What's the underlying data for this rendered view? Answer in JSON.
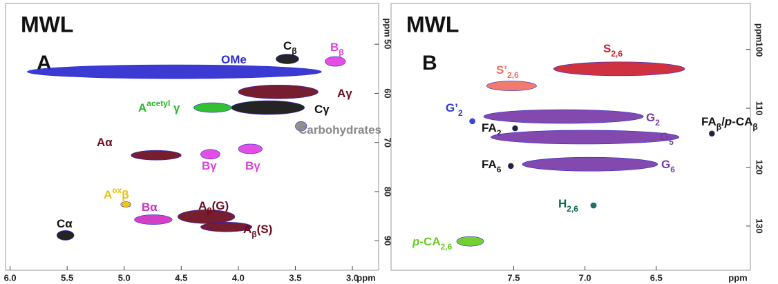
{
  "chart_data": [
    {
      "type": "hsqc",
      "title": "MWL",
      "panel": "A",
      "x_label": "ppm",
      "y_label": "ppm",
      "xlim": [
        6.04,
        2.77
      ],
      "ylim": [
        41.7,
        96
      ],
      "xticks": [
        {
          "value": 6,
          "label": "6.0"
        },
        5.5,
        {
          "value": 5,
          "label": "5.0"
        },
        4.5,
        {
          "value": 4,
          "label": "4.0"
        },
        3.5,
        {
          "value": 3,
          "label": "3.0"
        }
      ],
      "yticks": [
        50,
        60,
        70,
        80,
        90
      ],
      "peaks": [
        {
          "label": [
            {
              "text": "OMe"
            }
          ],
          "color": "#2a2ad0",
          "x": [
            5.85,
            3.27
          ],
          "y": 55.6
        },
        {
          "label": [
            {
              "text": "C"
            },
            {
              "text": "β",
              "style": "sub"
            }
          ],
          "color": "#111111",
          "x": [
            3.67,
            3.47
          ],
          "y": 53
        },
        {
          "label": [
            {
              "text": "B"
            },
            {
              "text": "β",
              "style": "sub"
            }
          ],
          "color": "#e040e0",
          "x": [
            3.24,
            3.06
          ],
          "y": 53.5
        },
        {
          "label": [
            {
              "text": "Aγ"
            }
          ],
          "color": "#6b0a1e",
          "x": [
            4.0,
            3.3
          ],
          "y": 59.7
        },
        {
          "label": [
            {
              "text": "A"
            },
            {
              "text": "acetyl",
              "style": "sup"
            },
            {
              "text": " γ"
            }
          ],
          "color": "#22bb22",
          "x": [
            4.39,
            4.06
          ],
          "y": 62.9
        },
        {
          "label": [
            {
              "text": "Cγ"
            }
          ],
          "color": "#111111",
          "x": [
            4.06,
            3.42
          ],
          "y": 62.9
        },
        {
          "label": [
            {
              "text": "Carbohydrates"
            }
          ],
          "color": "#888888",
          "x": [
            3.5,
            3.4
          ],
          "y": 66.7
        },
        {
          "label": [
            {
              "text": "Aα"
            }
          ],
          "color": "#6b0a1e",
          "x": [
            4.94,
            4.5
          ],
          "y": 72.6
        },
        {
          "label": [
            {
              "text": "Bγ"
            }
          ],
          "color": "#e040e0",
          "x": [
            4.33,
            4.16
          ],
          "y": 72.4
        },
        {
          "label": [
            {
              "text": "Bγ"
            }
          ],
          "color": "#e040e0",
          "x": [
            4.0,
            3.79
          ],
          "y": 71.3
        },
        {
          "label": [
            {
              "text": "A"
            },
            {
              "text": "ox",
              "style": "sup"
            },
            {
              "text": "β"
            }
          ],
          "color": "#f0c000",
          "x": [
            5.03,
            4.94
          ],
          "y": 82.6
        },
        {
          "label": [
            {
              "text": "Bα"
            }
          ],
          "color": "#d030c0",
          "x": [
            4.91,
            4.58
          ],
          "y": 85.7
        },
        {
          "label": [
            {
              "text": "A"
            },
            {
              "text": "β",
              "style": "sub"
            },
            {
              "text": "(G)"
            }
          ],
          "color": "#6b0a1e",
          "x": [
            4.53,
            4.03
          ],
          "y": 85.1
        },
        {
          "label": [
            {
              "text": "A"
            },
            {
              "text": "β",
              "style": "sub"
            },
            {
              "text": "(S)"
            }
          ],
          "color": "#6b0a1e",
          "x": [
            4.33,
            3.88
          ],
          "y": 87.2
        },
        {
          "label": [
            {
              "text": "Cα"
            }
          ],
          "color": "#111111",
          "x": [
            5.59,
            5.44
          ],
          "y": 88.9
        }
      ]
    },
    {
      "type": "hsqc",
      "title": "MWL",
      "panel": "B",
      "x_label": "ppm",
      "y_label": "ppm",
      "xlim": [
        8.36,
        5.84
      ],
      "ylim": [
        92.2,
        137.5
      ],
      "xticks": [
        7.5,
        {
          "value": 7,
          "label": "7.0"
        },
        6.5
      ],
      "yticks": [
        100,
        110,
        120,
        130
      ],
      "peaks": [
        {
          "label": [
            {
              "text": "S"
            },
            {
              "text": "2,6",
              "style": "sub"
            }
          ],
          "color": "#cc2030",
          "x": [
            7.22,
            6.3
          ],
          "y": 103.3
        },
        {
          "label": [
            {
              "text": "S’"
            },
            {
              "text": "2,6",
              "style": "sub"
            }
          ],
          "color": "#f07060",
          "x": [
            7.69,
            7.34
          ],
          "y": 106.2
        },
        {
          "label": [
            {
              "text": "G’"
            },
            {
              "text": "2",
              "style": "sub"
            }
          ],
          "color": "#2a3ad0",
          "x": [
            7.8,
            7.78
          ],
          "y": 112.2
        },
        {
          "label": [
            {
              "text": "G"
            },
            {
              "text": "2",
              "style": "sub"
            }
          ],
          "color": "#7a3aa8",
          "x": [
            7.71,
            6.59
          ],
          "y": 111.4
        },
        {
          "label": [
            {
              "text": "FA"
            },
            {
              "text": "2",
              "style": "sub"
            }
          ],
          "color": "#111111",
          "x": [
            7.5,
            7.48
          ],
          "y": 113.4
        },
        {
          "label": [
            {
              "text": "G"
            },
            {
              "text": "5",
              "style": "sub"
            }
          ],
          "color": "#7a3aa8",
          "x": [
            7.66,
            6.34
          ],
          "y": 114.9
        },
        {
          "label": [
            {
              "text": "FA"
            },
            {
              "text": "β",
              "style": "sub"
            },
            {
              "text": "/"
            },
            {
              "text": "p",
              "style": "italic"
            },
            {
              "text": "-CA"
            },
            {
              "text": "β",
              "style": "sub"
            }
          ],
          "color": "#111111",
          "x": [
            6.12,
            6.1
          ],
          "y": 114.3
        },
        {
          "label": [
            {
              "text": "FA"
            },
            {
              "text": "6",
              "style": "sub"
            }
          ],
          "color": "#111111",
          "x": [
            7.53,
            7.51
          ],
          "y": 119.8
        },
        {
          "label": [
            {
              "text": "G"
            },
            {
              "text": "6",
              "style": "sub"
            }
          ],
          "color": "#7a3aa8",
          "x": [
            7.44,
            6.49
          ],
          "y": 119.5
        },
        {
          "label": [
            {
              "text": "H"
            },
            {
              "text": "2,6",
              "style": "sub"
            }
          ],
          "color": "#0b6a4a",
          "x": [
            6.96,
            6.92
          ],
          "y": 126.5
        },
        {
          "label": [
            {
              "text": "p",
              "style": "italic"
            },
            {
              "text": "-CA"
            },
            {
              "text": "2,6",
              "style": "sub"
            }
          ],
          "color": "#66cc22",
          "x": [
            7.9,
            7.71
          ],
          "y": 132.6
        }
      ]
    }
  ]
}
